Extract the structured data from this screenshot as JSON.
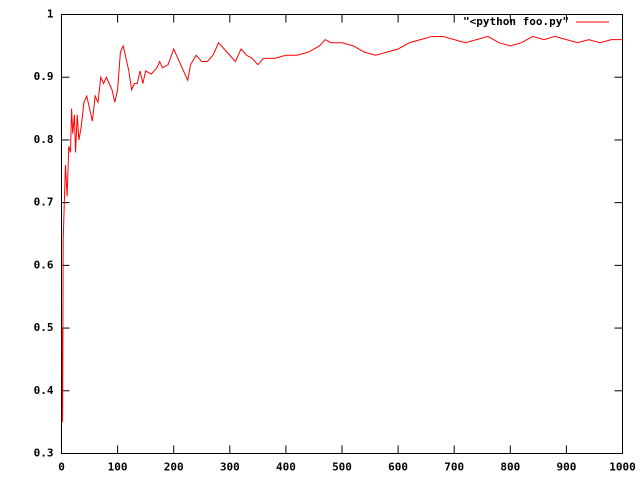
{
  "chart_data": {
    "type": "line",
    "x": [
      1,
      2,
      3,
      5,
      7,
      10,
      13,
      16,
      18,
      20,
      23,
      25,
      28,
      31,
      35,
      40,
      45,
      50,
      55,
      60,
      65,
      70,
      75,
      80,
      85,
      90,
      95,
      100,
      105,
      110,
      115,
      120,
      125,
      130,
      135,
      140,
      145,
      150,
      160,
      170,
      175,
      180,
      190,
      200,
      210,
      220,
      225,
      230,
      240,
      250,
      260,
      270,
      280,
      290,
      300,
      310,
      320,
      330,
      340,
      350,
      360,
      380,
      400,
      420,
      440,
      460,
      470,
      480,
      500,
      520,
      540,
      560,
      580,
      600,
      620,
      640,
      660,
      680,
      700,
      720,
      740,
      760,
      780,
      800,
      820,
      840,
      860,
      880,
      900,
      920,
      940,
      960,
      980,
      1000
    ],
    "series": [
      {
        "name": "\"<python foo.py\"",
        "color": "#ff0000",
        "values": [
          0.5,
          0.35,
          0.64,
          0.7,
          0.76,
          0.71,
          0.79,
          0.78,
          0.85,
          0.81,
          0.84,
          0.78,
          0.84,
          0.8,
          0.82,
          0.86,
          0.87,
          0.85,
          0.83,
          0.87,
          0.86,
          0.9,
          0.89,
          0.9,
          0.89,
          0.88,
          0.86,
          0.88,
          0.94,
          0.95,
          0.93,
          0.91,
          0.88,
          0.89,
          0.89,
          0.91,
          0.89,
          0.91,
          0.905,
          0.915,
          0.925,
          0.915,
          0.92,
          0.945,
          0.925,
          0.905,
          0.895,
          0.92,
          0.935,
          0.925,
          0.925,
          0.935,
          0.955,
          0.945,
          0.935,
          0.925,
          0.945,
          0.935,
          0.93,
          0.92,
          0.93,
          0.93,
          0.935,
          0.935,
          0.94,
          0.95,
          0.96,
          0.955,
          0.955,
          0.95,
          0.94,
          0.935,
          0.94,
          0.945,
          0.955,
          0.96,
          0.965,
          0.965,
          0.96,
          0.955,
          0.96,
          0.965,
          0.955,
          0.95,
          0.955,
          0.965,
          0.96,
          0.965,
          0.96,
          0.955,
          0.96,
          0.955,
          0.96,
          0.96
        ]
      }
    ],
    "xlim": [
      0,
      1000
    ],
    "xticks": [
      0,
      100,
      200,
      300,
      400,
      500,
      600,
      700,
      800,
      900,
      1000
    ],
    "ylim": [
      0.3,
      1
    ],
    "yticks": [
      0.3,
      0.4,
      0.5,
      0.6,
      0.7,
      0.8,
      0.9,
      1
    ],
    "legend": "top-right"
  }
}
